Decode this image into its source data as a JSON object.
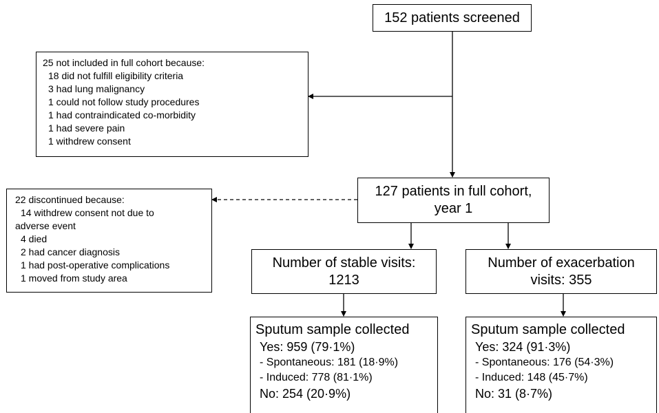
{
  "nodes": {
    "screened": {
      "lines": [
        "152 patients screened"
      ]
    },
    "excluded": {
      "lines": [
        "25 not included in full cohort because:",
        "18 did not fulfill eligibility criteria",
        "3 had lung malignancy",
        "1 could not follow study procedures",
        "1 had contraindicated co-morbidity",
        "1 had severe pain",
        "1 withdrew consent"
      ]
    },
    "cohort": {
      "lines": [
        "127 patients in full cohort,",
        "year 1"
      ]
    },
    "discontinued": {
      "lines": [
        "22 discontinued because:",
        "14 withdrew consent not due to",
        "adverse event",
        "4 died",
        "2 had cancer diagnosis",
        "1 had post-operative complications",
        "1 moved from study area"
      ]
    },
    "stable": {
      "lines": [
        "Number of stable visits:",
        "1213"
      ]
    },
    "exacerbation": {
      "lines": [
        "Number of exacerbation",
        "visits: 355"
      ]
    },
    "stable_sputum": {
      "lines": [
        "Sputum sample collected",
        "Yes: 959 (79·1%)",
        "- Spontaneous: 181 (18·9%)",
        "- Induced: 778 (81·1%)",
        "No: 254 (20·9%)"
      ]
    },
    "exacerbation_sputum": {
      "lines": [
        "Sputum sample collected",
        "Yes: 324 (91·3%)",
        "- Spontaneous: 176 (54·3%)",
        "- Induced: 148 (45·7%)",
        "No: 31 (8·7%)"
      ]
    }
  }
}
